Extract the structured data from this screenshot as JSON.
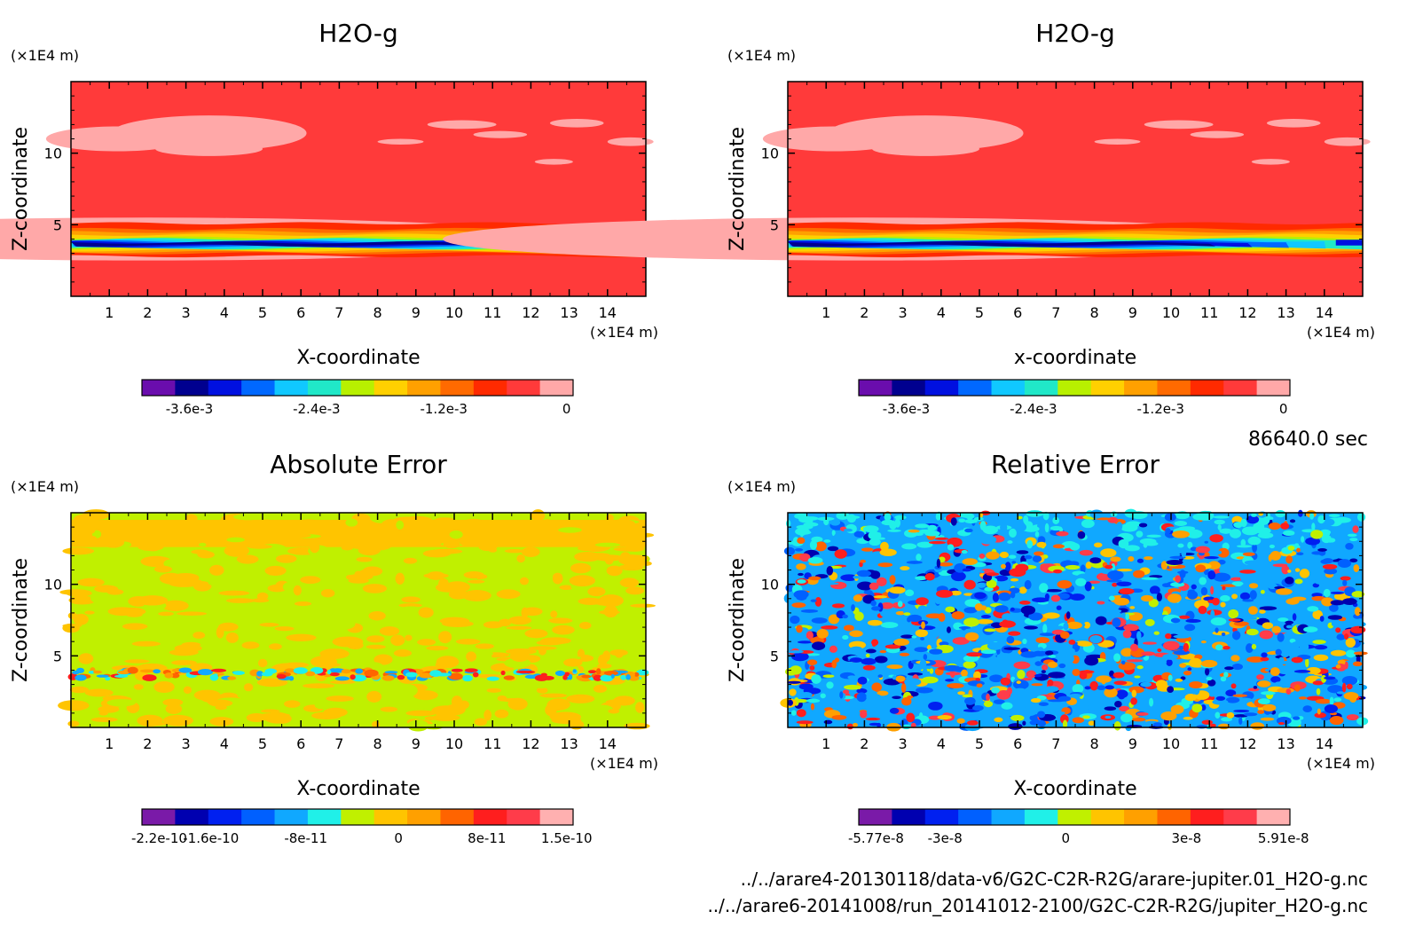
{
  "time_label": "86640.0 sec",
  "files": [
    "../../arare4-20130118/data-v6/G2C-C2R-R2G/arare-jupiter.01_H2O-g.nc",
    "../../arare6-20141008/run_20141012-2100/G2C-C2R-R2G/jupiter_H2O-g.nc"
  ],
  "colors": {
    "field_palette": [
      "#6a0dad",
      "#00008f",
      "#0010e0",
      "#0068ff",
      "#10c8ff",
      "#20e8c8",
      "#b8f000",
      "#ffd000",
      "#ffa000",
      "#ff6a00",
      "#ff2a00",
      "#ff3a3a",
      "#ffa8a8"
    ],
    "error_palette": [
      "#7a1aa8",
      "#0000b0",
      "#0020f0",
      "#0060ff",
      "#10a8ff",
      "#20f0e8",
      "#c0f000",
      "#ffc400",
      "#ffa000",
      "#ff6400",
      "#ff1e1e",
      "#ff3c4a",
      "#ffb0b0"
    ]
  },
  "chart_data": [
    {
      "type": "heatmap",
      "title": "H2O-g",
      "xlabel": "X-coordinate",
      "ylabel": "Z-coordinate",
      "x_unit": "(×1E4 m)",
      "y_unit": "(×1E4 m)",
      "xlim": [
        0,
        15
      ],
      "ylim": [
        0,
        15
      ],
      "xticks": [
        "1",
        "2",
        "3",
        "4",
        "5",
        "6",
        "7",
        "8",
        "9",
        "10",
        "11",
        "12",
        "13",
        "14"
      ],
      "yticks": [
        "5",
        "10"
      ],
      "colorbar_ticks": [
        "-3.6e-3",
        "-2.4e-3",
        "-1.2e-3",
        "0"
      ],
      "field": "h2o"
    },
    {
      "type": "heatmap",
      "title": "H2O-g",
      "xlabel": "x-coordinate",
      "ylabel": "Z-coordinate",
      "x_unit": "(×1E4 m)",
      "y_unit": "(×1E4 m)",
      "xlim": [
        0,
        15
      ],
      "ylim": [
        0,
        15
      ],
      "xticks": [
        "1",
        "2",
        "3",
        "4",
        "5",
        "6",
        "7",
        "8",
        "9",
        "10",
        "11",
        "12",
        "13",
        "14"
      ],
      "yticks": [
        "5",
        "10"
      ],
      "colorbar_ticks": [
        "-3.6e-3",
        "-2.4e-3",
        "-1.2e-3",
        "0"
      ],
      "field": "h2o"
    },
    {
      "type": "heatmap",
      "title": "Absolute Error",
      "xlabel": "X-coordinate",
      "ylabel": "Z-coordinate",
      "x_unit": "(×1E4 m)",
      "y_unit": "(×1E4 m)",
      "xlim": [
        0,
        15
      ],
      "ylim": [
        0,
        15
      ],
      "xticks": [
        "1",
        "2",
        "3",
        "4",
        "5",
        "6",
        "7",
        "8",
        "9",
        "10",
        "11",
        "12",
        "13",
        "14"
      ],
      "yticks": [
        "5",
        "10"
      ],
      "colorbar_ticks": [
        "-2.2e-10",
        "-1.6e-10",
        "-8e-11",
        "0",
        "8e-11",
        "1.5e-10"
      ],
      "field": "abs"
    },
    {
      "type": "heatmap",
      "title": "Relative Error",
      "xlabel": "X-coordinate",
      "ylabel": "Z-coordinate",
      "x_unit": "(×1E4 m)",
      "y_unit": "(×1E4 m)",
      "xlim": [
        0,
        15
      ],
      "ylim": [
        0,
        15
      ],
      "xticks": [
        "1",
        "2",
        "3",
        "4",
        "5",
        "6",
        "7",
        "8",
        "9",
        "10",
        "11",
        "12",
        "13",
        "14"
      ],
      "yticks": [
        "5",
        "10"
      ],
      "colorbar_ticks": [
        "-5.77e-8",
        "-3e-8",
        "0",
        "3e-8",
        "5.91e-8"
      ],
      "field": "rel"
    }
  ]
}
